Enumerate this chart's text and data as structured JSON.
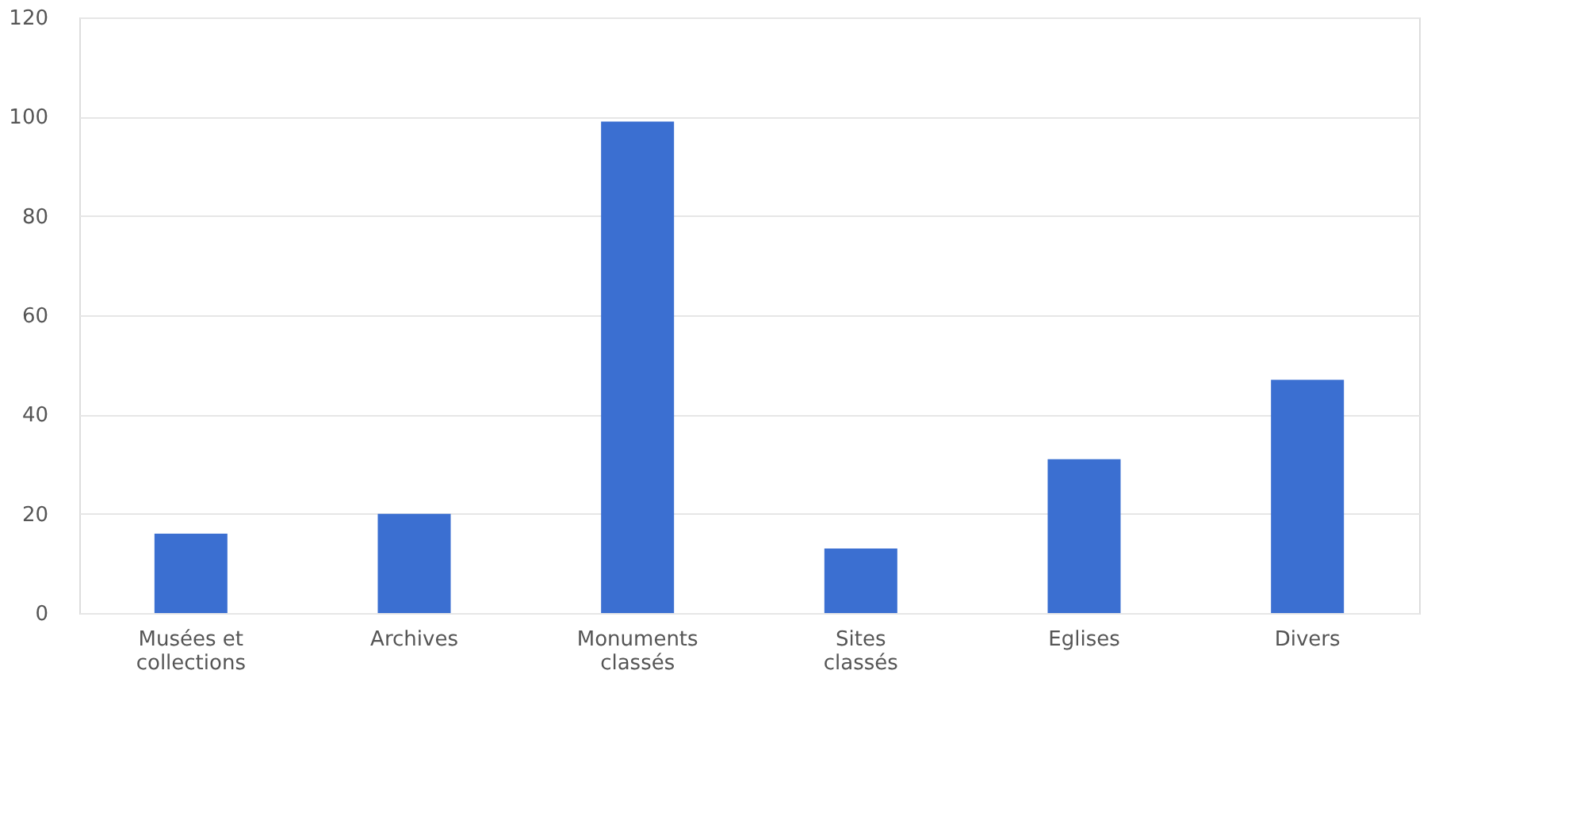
{
  "chart_data": {
    "type": "bar",
    "categories": [
      "Musées et collections",
      "Archives",
      "Monuments classés",
      "Sites classés",
      "Eglises",
      "Divers"
    ],
    "values": [
      16,
      20,
      99,
      13,
      31,
      47
    ],
    "color": "#3b6fd1",
    "ylim": [
      0,
      120
    ],
    "yticks": [
      0,
      20,
      40,
      60,
      80,
      100,
      120
    ],
    "grid": "y"
  }
}
